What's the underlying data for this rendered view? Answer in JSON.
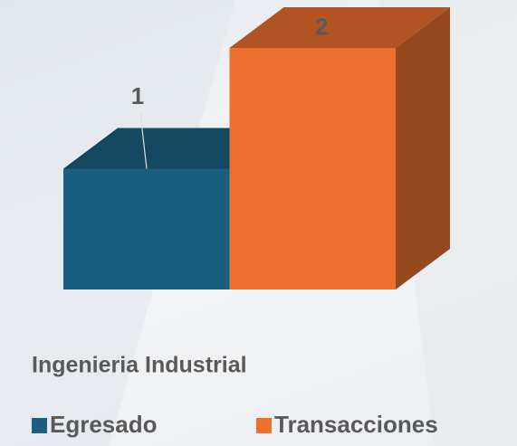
{
  "chart_data": {
    "type": "bar3d",
    "categories": [
      "Ingenieria Industrial"
    ],
    "series": [
      {
        "name": "Egresado",
        "color": "#1a5e80",
        "values": [
          1
        ]
      },
      {
        "name": "Transacciones",
        "color": "#ec7030",
        "values": [
          2
        ]
      }
    ]
  }
}
